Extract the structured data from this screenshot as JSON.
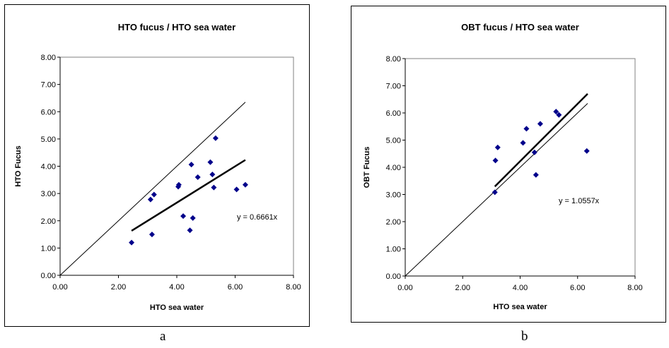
{
  "chart_data": [
    {
      "type": "scatter",
      "title": "HTO fucus / HTO sea water",
      "xlabel": "HTO sea water",
      "ylabel": "HTO Fucus",
      "xlim": [
        0,
        8
      ],
      "ylim": [
        0,
        8
      ],
      "x_ticks": [
        "0.00",
        "2.00",
        "4.00",
        "6.00",
        "8.00"
      ],
      "y_ticks": [
        "0.00",
        "1.00",
        "2.00",
        "3.00",
        "4.00",
        "5.00",
        "6.00",
        "7.00",
        "8.00"
      ],
      "points": [
        {
          "x": 2.45,
          "y": 1.2
        },
        {
          "x": 3.15,
          "y": 1.5
        },
        {
          "x": 3.1,
          "y": 2.78
        },
        {
          "x": 3.22,
          "y": 2.96
        },
        {
          "x": 4.05,
          "y": 3.25
        },
        {
          "x": 4.07,
          "y": 3.32
        },
        {
          "x": 4.22,
          "y": 2.17
        },
        {
          "x": 4.45,
          "y": 1.65
        },
        {
          "x": 4.5,
          "y": 4.06
        },
        {
          "x": 4.55,
          "y": 2.1
        },
        {
          "x": 4.72,
          "y": 3.6
        },
        {
          "x": 5.15,
          "y": 4.15
        },
        {
          "x": 5.22,
          "y": 3.7
        },
        {
          "x": 5.27,
          "y": 3.22
        },
        {
          "x": 5.33,
          "y": 5.03
        },
        {
          "x": 6.05,
          "y": 3.15
        },
        {
          "x": 6.35,
          "y": 3.32
        }
      ],
      "fit_line": {
        "slope": 0.6661,
        "x_range": [
          2.45,
          6.35
        ]
      },
      "reference_line": {
        "slope": 1.0,
        "x_range": [
          0,
          6.35
        ]
      },
      "equation_label": "y = 0.6661x",
      "grid": false,
      "marker_color": "#00008b"
    },
    {
      "type": "scatter",
      "title": "OBT fucus / HTO sea water",
      "xlabel": "HTO sea water",
      "ylabel": "OBT Fucus",
      "xlim": [
        0,
        8
      ],
      "ylim": [
        0,
        8
      ],
      "x_ticks": [
        "0.00",
        "2.00",
        "4.00",
        "6.00",
        "8.00"
      ],
      "y_ticks": [
        "0.00",
        "1.00",
        "2.00",
        "3.00",
        "4.00",
        "5.00",
        "6.00",
        "7.00",
        "8.00"
      ],
      "points": [
        {
          "x": 3.12,
          "y": 3.08
        },
        {
          "x": 3.14,
          "y": 4.25
        },
        {
          "x": 3.22,
          "y": 4.73
        },
        {
          "x": 4.1,
          "y": 4.9
        },
        {
          "x": 4.22,
          "y": 5.42
        },
        {
          "x": 4.5,
          "y": 4.55
        },
        {
          "x": 4.55,
          "y": 3.72
        },
        {
          "x": 4.7,
          "y": 5.6
        },
        {
          "x": 5.25,
          "y": 6.05
        },
        {
          "x": 5.35,
          "y": 5.93
        },
        {
          "x": 6.32,
          "y": 4.6
        }
      ],
      "fit_line": {
        "slope": 1.0557,
        "x_range": [
          3.12,
          6.35
        ]
      },
      "reference_line": {
        "slope": 1.0,
        "x_range": [
          0,
          6.35
        ]
      },
      "equation_label": "y = 1.0557x",
      "grid": false,
      "marker_color": "#00008b"
    }
  ],
  "captions": {
    "a": "a",
    "b": "b"
  }
}
